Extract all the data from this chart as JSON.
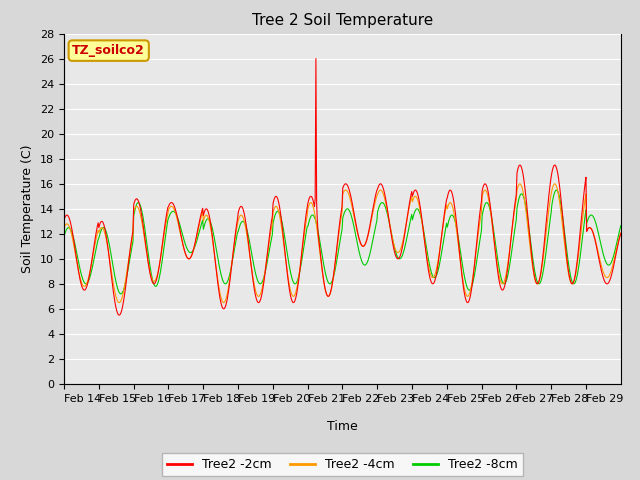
{
  "title": "Tree 2 Soil Temperature",
  "xlabel": "Time",
  "ylabel": "Soil Temperature (C)",
  "ylim": [
    0,
    28
  ],
  "yticks": [
    0,
    2,
    4,
    6,
    8,
    10,
    12,
    14,
    16,
    18,
    20,
    22,
    24,
    26,
    28
  ],
  "xtick_labels": [
    "Feb 14",
    "Feb 15",
    "Feb 16",
    "Feb 17",
    "Feb 18",
    "Feb 19",
    "Feb 20",
    "Feb 21",
    "Feb 22",
    "Feb 23",
    "Feb 24",
    "Feb 25",
    "Feb 26",
    "Feb 27",
    "Feb 28",
    "Feb 29"
  ],
  "annotation_text": "TZ_soilco2",
  "annotation_text_color": "#cc0000",
  "annotation_box_facecolor": "#ffff99",
  "annotation_box_edgecolor": "#cc9900",
  "series_2cm_color": "#ff0000",
  "series_4cm_color": "#ff9900",
  "series_8cm_color": "#00cc00",
  "series_2cm_label": "Tree2 -2cm",
  "series_4cm_label": "Tree2 -4cm",
  "series_8cm_label": "Tree2 -8cm",
  "plot_bg_color": "#e8e8e8",
  "fig_bg_color": "#d8d8d8",
  "grid_color": "#ffffff",
  "title_fontsize": 11,
  "label_fontsize": 9,
  "tick_fontsize": 8,
  "linewidth": 0.8
}
